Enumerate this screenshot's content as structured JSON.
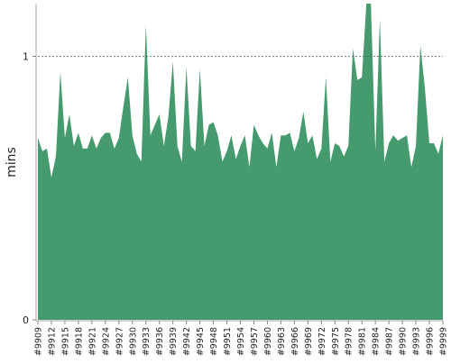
{
  "chart_data": {
    "type": "area",
    "ylabel": "mins",
    "ylim": [
      0,
      1.2
    ],
    "y_ticks": [
      {
        "value": 0,
        "label": "0"
      },
      {
        "value": 1,
        "label": "1"
      }
    ],
    "reference_line": {
      "value": 1,
      "style": "dotted"
    },
    "grid": false,
    "x_tick_labels": [
      "#9909",
      "#9912",
      "#9915",
      "#9918",
      "#9921",
      "#9924",
      "#9927",
      "#9930",
      "#9933",
      "#9936",
      "#9939",
      "#9942",
      "#9945",
      "#9948",
      "#9951",
      "#9954",
      "#9957",
      "#9960",
      "#9963",
      "#9966",
      "#9969",
      "#9972",
      "#9975",
      "#9978",
      "#9981",
      "#9984",
      "#9987",
      "#9990",
      "#9993",
      "#9996",
      "#9999"
    ],
    "series": [
      {
        "color": "#459b6d",
        "x_start": 9909,
        "x_end": 9999,
        "values": [
          0.69,
          0.64,
          0.65,
          0.54,
          0.62,
          0.94,
          0.69,
          0.78,
          0.66,
          0.71,
          0.65,
          0.65,
          0.7,
          0.65,
          0.69,
          0.71,
          0.71,
          0.65,
          0.69,
          0.81,
          0.92,
          0.7,
          0.63,
          0.6,
          1.12,
          0.7,
          0.74,
          0.78,
          0.66,
          0.77,
          0.98,
          0.66,
          0.6,
          0.96,
          0.66,
          0.64,
          0.95,
          0.66,
          0.74,
          0.75,
          0.7,
          0.6,
          0.64,
          0.7,
          0.61,
          0.66,
          0.7,
          0.58,
          0.74,
          0.7,
          0.67,
          0.65,
          0.71,
          0.58,
          0.7,
          0.7,
          0.71,
          0.64,
          0.69,
          0.79,
          0.67,
          0.7,
          0.61,
          0.65,
          0.92,
          0.6,
          0.67,
          0.66,
          0.62,
          0.66,
          1.03,
          0.91,
          0.92,
          1.25,
          1.25,
          0.64,
          1.14,
          0.6,
          0.67,
          0.7,
          0.68,
          0.69,
          0.7,
          0.58,
          0.66,
          1.04,
          0.88,
          0.67,
          0.67,
          0.63,
          0.7
        ]
      }
    ]
  }
}
